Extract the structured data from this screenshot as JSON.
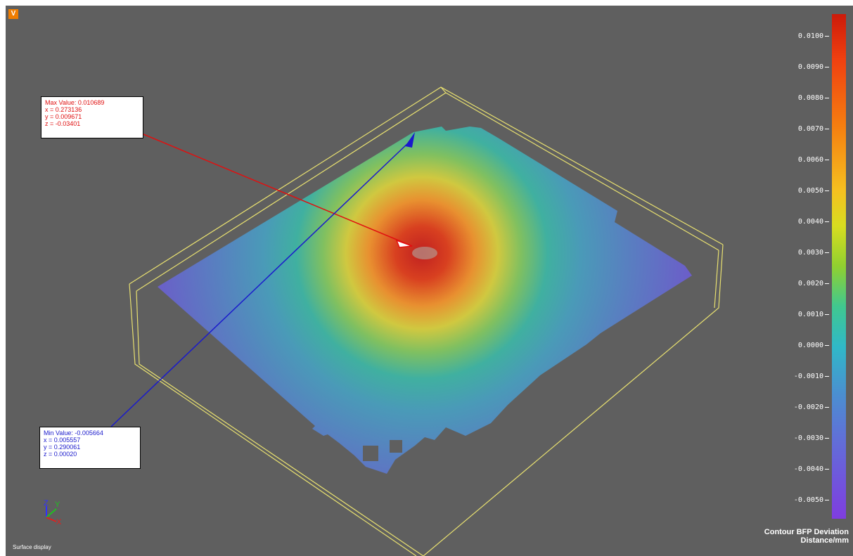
{
  "menu": {
    "badge": "V"
  },
  "max_info": {
    "label": "Max Value: 0.010689",
    "x": "x = 0.273136",
    "y": "y = 0.009671",
    "z": "z = -0.03401",
    "color": "#e01010"
  },
  "min_info": {
    "label": "Min Value: -0.005664",
    "x": "x = 0.005557",
    "y": "y = 0.290061",
    "z": "z = 0.00020",
    "color": "#1a1acc"
  },
  "colorbar": {
    "ticks": [
      "0.0100",
      "0.0090",
      "0.0080",
      "0.0070",
      "0.0060",
      "0.0050",
      "0.0040",
      "0.0030",
      "0.0020",
      "0.0010",
      "0.0000",
      "-0.0010",
      "-0.0020",
      "-0.0030",
      "-0.0040",
      "-0.0050"
    ],
    "title_line1": "Contour BFP Deviation",
    "title_line2": "Distance/mm",
    "colors": [
      "#cc1a0a",
      "#f57d10",
      "#f5c020",
      "#90d030",
      "#30b8c8",
      "#6070d8",
      "#7f3de0"
    ]
  },
  "axes": {
    "z": "Z",
    "y": "Y",
    "x": "X"
  },
  "status": {
    "text": "Surface display"
  }
}
